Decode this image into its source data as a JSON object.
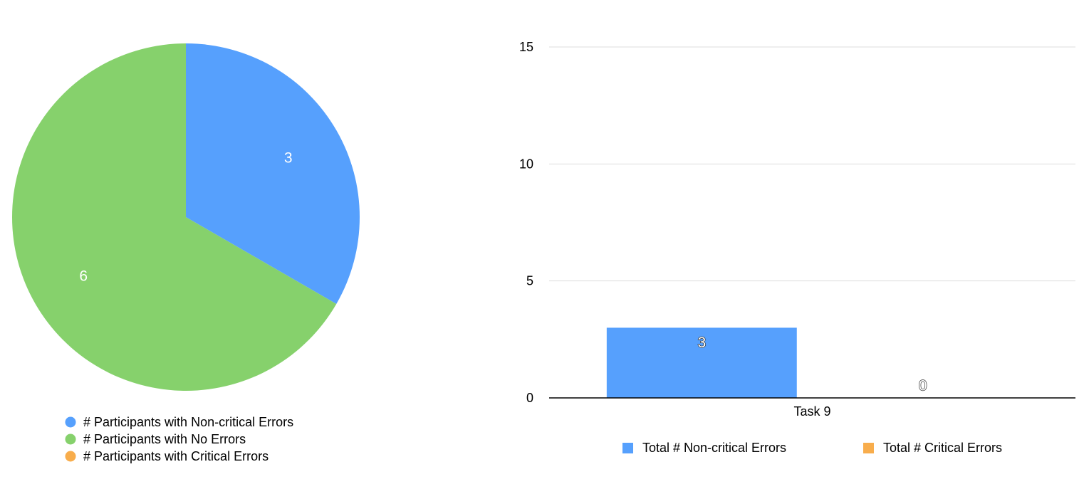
{
  "chart_data": [
    {
      "type": "pie",
      "title": "",
      "legend_position": "bottom",
      "series": [
        {
          "name": "# Participants with Non-critical Errors",
          "value": 3,
          "label": "3",
          "color": "#56a0fd"
        },
        {
          "name": "# Participants with No Errors",
          "value": 6,
          "label": "6",
          "color": "#86d16c"
        },
        {
          "name": "# Participants with Critical Errors",
          "value": 0,
          "label": "",
          "color": "#f8ad4c"
        }
      ]
    },
    {
      "type": "bar",
      "title": "",
      "xlabel": "",
      "ylabel": "",
      "categories": [
        "Task 9"
      ],
      "ylim": [
        0,
        15
      ],
      "yticks": [
        {
          "value": 0,
          "label": "0"
        },
        {
          "value": 5,
          "label": "5"
        },
        {
          "value": 10,
          "label": "10"
        },
        {
          "value": 15,
          "label": "15"
        }
      ],
      "grid": true,
      "legend_position": "bottom",
      "series": [
        {
          "name": "Total # Non-critical Errors",
          "values": [
            3
          ],
          "labels": [
            "3"
          ],
          "color": "#56a0fd"
        },
        {
          "name": "Total # Critical Errors",
          "values": [
            0
          ],
          "labels": [
            "0"
          ],
          "color": "#f8ad4c"
        }
      ]
    }
  ]
}
